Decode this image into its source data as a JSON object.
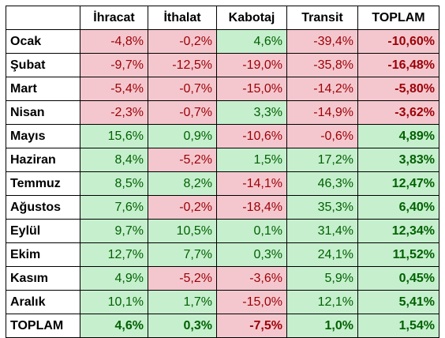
{
  "table": {
    "headers": [
      "",
      "İhracat",
      "İthalat",
      "Kabotaj",
      "Transit",
      "TOPLAM"
    ],
    "colors": {
      "negative_bg": "#f4c7ce",
      "negative_text": "#9c0006",
      "positive_bg": "#c6efce",
      "positive_text": "#006100"
    },
    "rows": [
      {
        "label": "Ocak",
        "cells": [
          {
            "v": "-4,8%",
            "s": "neg"
          },
          {
            "v": "-0,2%",
            "s": "neg"
          },
          {
            "v": "4,6%",
            "s": "pos"
          },
          {
            "v": "-39,4%",
            "s": "neg"
          },
          {
            "v": "-10,60%",
            "s": "neg"
          }
        ]
      },
      {
        "label": "Şubat",
        "cells": [
          {
            "v": "-9,7%",
            "s": "neg"
          },
          {
            "v": "-12,5%",
            "s": "neg"
          },
          {
            "v": "-19,0%",
            "s": "neg"
          },
          {
            "v": "-35,8%",
            "s": "neg"
          },
          {
            "v": "-16,48%",
            "s": "neg"
          }
        ]
      },
      {
        "label": "Mart",
        "cells": [
          {
            "v": "-5,4%",
            "s": "neg"
          },
          {
            "v": "-0,7%",
            "s": "neg"
          },
          {
            "v": "-15,0%",
            "s": "neg"
          },
          {
            "v": "-14,2%",
            "s": "neg"
          },
          {
            "v": "-5,80%",
            "s": "neg"
          }
        ]
      },
      {
        "label": "Nisan",
        "cells": [
          {
            "v": "-2,3%",
            "s": "neg"
          },
          {
            "v": "-0,7%",
            "s": "neg"
          },
          {
            "v": "3,3%",
            "s": "pos"
          },
          {
            "v": "-14,9%",
            "s": "neg"
          },
          {
            "v": "-3,62%",
            "s": "neg"
          }
        ]
      },
      {
        "label": "Mayıs",
        "cells": [
          {
            "v": "15,6%",
            "s": "pos"
          },
          {
            "v": "0,9%",
            "s": "pos"
          },
          {
            "v": "-10,6%",
            "s": "neg"
          },
          {
            "v": "-0,6%",
            "s": "neg"
          },
          {
            "v": "4,89%",
            "s": "pos"
          }
        ]
      },
      {
        "label": "Haziran",
        "cells": [
          {
            "v": "8,4%",
            "s": "pos"
          },
          {
            "v": "-5,2%",
            "s": "neg"
          },
          {
            "v": "1,5%",
            "s": "pos"
          },
          {
            "v": "17,2%",
            "s": "pos"
          },
          {
            "v": "3,83%",
            "s": "pos"
          }
        ]
      },
      {
        "label": "Temmuz",
        "cells": [
          {
            "v": "8,5%",
            "s": "pos"
          },
          {
            "v": "8,2%",
            "s": "pos"
          },
          {
            "v": "-14,1%",
            "s": "neg"
          },
          {
            "v": "46,3%",
            "s": "pos"
          },
          {
            "v": "12,47%",
            "s": "pos"
          }
        ]
      },
      {
        "label": "Ağustos",
        "cells": [
          {
            "v": "7,6%",
            "s": "pos"
          },
          {
            "v": "-0,2%",
            "s": "neg"
          },
          {
            "v": "-18,4%",
            "s": "neg"
          },
          {
            "v": "35,3%",
            "s": "pos"
          },
          {
            "v": "6,40%",
            "s": "pos"
          }
        ]
      },
      {
        "label": "Eylül",
        "cells": [
          {
            "v": "9,7%",
            "s": "pos"
          },
          {
            "v": "10,5%",
            "s": "pos"
          },
          {
            "v": "0,1%",
            "s": "pos"
          },
          {
            "v": "31,4%",
            "s": "pos"
          },
          {
            "v": "12,34%",
            "s": "pos"
          }
        ]
      },
      {
        "label": "Ekim",
        "cells": [
          {
            "v": "12,7%",
            "s": "pos"
          },
          {
            "v": "7,7%",
            "s": "pos"
          },
          {
            "v": "0,3%",
            "s": "pos"
          },
          {
            "v": "24,1%",
            "s": "pos"
          },
          {
            "v": "11,52%",
            "s": "pos"
          }
        ]
      },
      {
        "label": "Kasım",
        "cells": [
          {
            "v": "4,9%",
            "s": "pos"
          },
          {
            "v": "-5,2%",
            "s": "neg"
          },
          {
            "v": "-3,6%",
            "s": "neg"
          },
          {
            "v": "5,9%",
            "s": "pos"
          },
          {
            "v": "0,45%",
            "s": "pos"
          }
        ]
      },
      {
        "label": "Aralık",
        "cells": [
          {
            "v": "10,1%",
            "s": "pos"
          },
          {
            "v": "1,7%",
            "s": "pos"
          },
          {
            "v": "-15,0%",
            "s": "neg"
          },
          {
            "v": "12,1%",
            "s": "pos"
          },
          {
            "v": "5,41%",
            "s": "pos"
          }
        ]
      },
      {
        "label": "TOPLAM",
        "total": true,
        "cells": [
          {
            "v": "4,6%",
            "s": "pos"
          },
          {
            "v": "0,3%",
            "s": "pos"
          },
          {
            "v": "-7,5%",
            "s": "neg"
          },
          {
            "v": "1,0%",
            "s": "pos"
          },
          {
            "v": "1,54%",
            "s": "pos"
          }
        ]
      }
    ]
  }
}
